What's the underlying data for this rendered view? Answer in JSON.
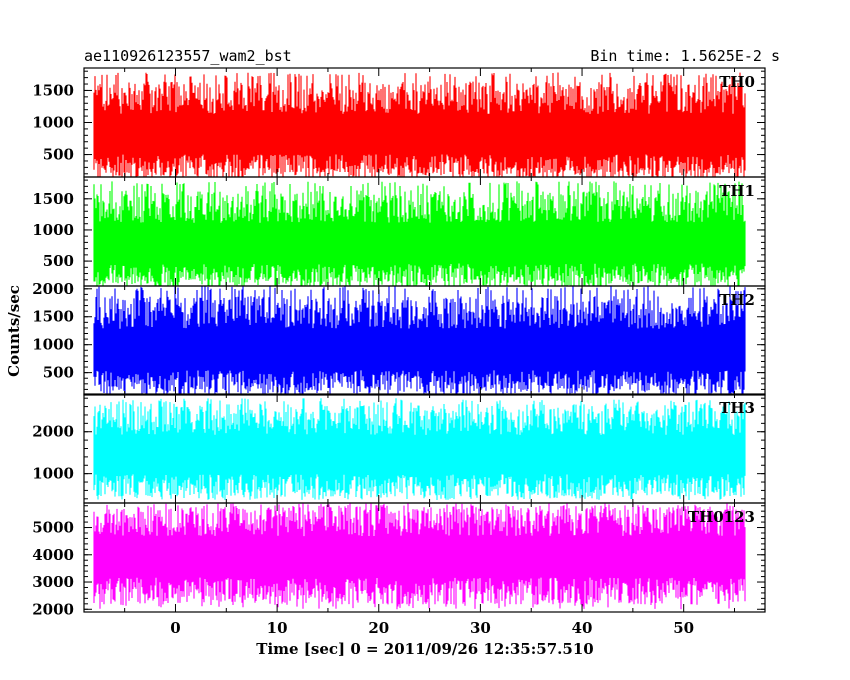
{
  "header": {
    "left_title": "ae110926123557_wam2_bst",
    "right_title": "Bin time: 1.5625E-2 s"
  },
  "chart_data": {
    "type": "line",
    "xlabel": "Time [sec] 0 = 2011/09/26 12:35:57.510",
    "ylabel": "Counts/sec",
    "xlim": [
      -9,
      58
    ],
    "x_data_range": [
      -8,
      56
    ],
    "x_ticks": [
      0,
      10,
      20,
      30,
      40,
      50
    ],
    "x_tick_labels": [
      "0",
      "10",
      "20",
      "30",
      "40",
      "50"
    ],
    "panels": [
      {
        "name": "TH0",
        "color": "#ff0000",
        "ylim": [
          150,
          1850
        ],
        "y_ticks": [
          500,
          1000,
          1500
        ],
        "y_tick_labels": [
          "500",
          "1000",
          "1500"
        ],
        "mean": 850,
        "low": 200,
        "high": 1780
      },
      {
        "name": "TH1",
        "color": "#00ff00",
        "ylim": [
          100,
          1850
        ],
        "y_ticks": [
          500,
          1000,
          1500
        ],
        "y_tick_labels": [
          "500",
          "1000",
          "1500"
        ],
        "mean": 820,
        "low": 150,
        "high": 1780
      },
      {
        "name": "TH2",
        "color": "#0000ff",
        "ylim": [
          100,
          2050
        ],
        "y_ticks": [
          500,
          1000,
          1500,
          2000
        ],
        "y_tick_labels": [
          "500",
          "1000",
          "1500",
          "2000"
        ],
        "mean": 950,
        "low": 200,
        "high": 2050
      },
      {
        "name": "TH3",
        "color": "#00ffff",
        "ylim": [
          300,
          2900
        ],
        "y_ticks": [
          1000,
          2000
        ],
        "y_tick_labels": [
          "1000",
          "2000"
        ],
        "mean": 1500,
        "low": 450,
        "high": 2800
      },
      {
        "name": "TH0123",
        "color": "#ff00ff",
        "ylim": [
          1900,
          5900
        ],
        "y_ticks": [
          2000,
          3000,
          4000,
          5000
        ],
        "y_tick_labels": [
          "2000",
          "3000",
          "4000",
          "5000"
        ],
        "mean": 4000,
        "low": 2000,
        "high": 5800
      }
    ]
  }
}
